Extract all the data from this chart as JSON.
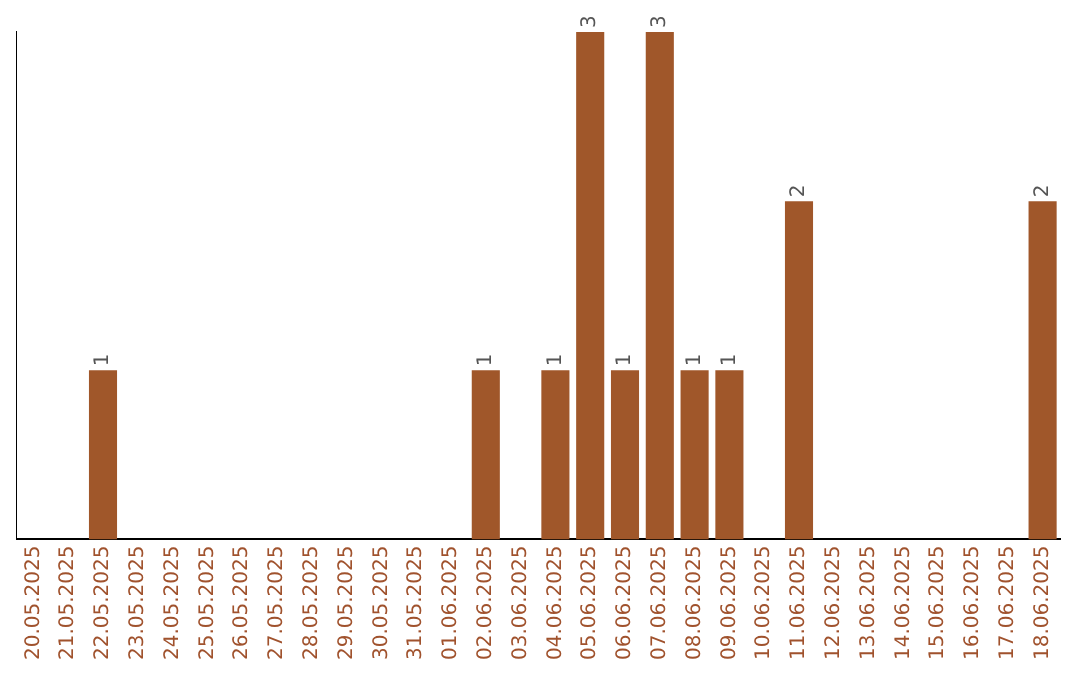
{
  "chart_data": {
    "type": "bar",
    "categories": [
      "20.05.2025",
      "21.05.2025",
      "22.05.2025",
      "23.05.2025",
      "24.05.2025",
      "25.05.2025",
      "26.05.2025",
      "27.05.2025",
      "28.05.2025",
      "29.05.2025",
      "30.05.2025",
      "31.05.2025",
      "01.06.2025",
      "02.06.2025",
      "03.06.2025",
      "04.06.2025",
      "05.06.2025",
      "06.06.2025",
      "07.06.2025",
      "08.06.2025",
      "09.06.2025",
      "10.06.2025",
      "11.06.2025",
      "12.06.2025",
      "13.06.2025",
      "14.06.2025",
      "15.06.2025",
      "16.06.2025",
      "17.06.2025",
      "18.06.2025"
    ],
    "values": [
      0,
      0,
      1,
      0,
      0,
      0,
      0,
      0,
      0,
      0,
      0,
      0,
      0,
      1,
      0,
      1,
      3,
      1,
      3,
      1,
      1,
      0,
      2,
      0,
      0,
      0,
      0,
      0,
      0,
      2
    ],
    "value_labels": [
      null,
      null,
      "1",
      null,
      null,
      null,
      null,
      null,
      null,
      null,
      null,
      null,
      null,
      "1",
      null,
      "1",
      "3",
      "1",
      "3",
      "1",
      "1",
      null,
      "2",
      null,
      null,
      null,
      null,
      null,
      null,
      "2"
    ],
    "color": "#a0572a",
    "tick_labels": "x",
    "grid": false,
    "legend": false
  }
}
